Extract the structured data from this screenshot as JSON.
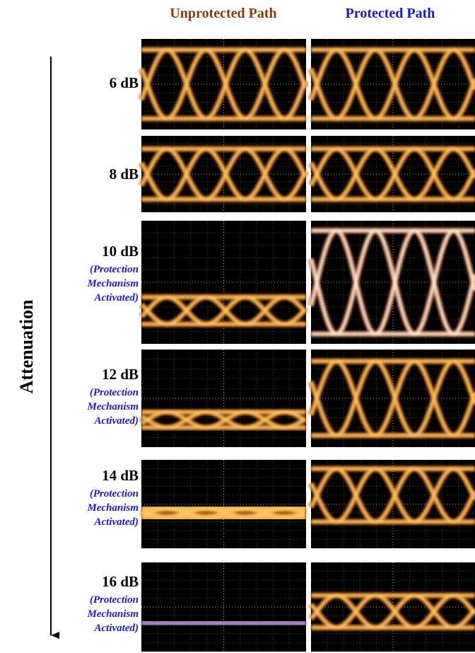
{
  "header": {
    "unprotected": "Unprotected Path",
    "protected": "Protected Path"
  },
  "axis_label": "Attenuation",
  "rows": [
    {
      "label": "6 dB"
    },
    {
      "label": "8 dB"
    },
    {
      "label": "10 dB",
      "note": "(Protection Mechanism Activated)"
    },
    {
      "label": "12 dB",
      "note": "(Protection Mechanism Activated)"
    },
    {
      "label": "14 dB",
      "note": "(Protection Mechanism Activated)"
    },
    {
      "label": "16 dB",
      "note": "(Protection Mechanism Activated)"
    }
  ]
}
